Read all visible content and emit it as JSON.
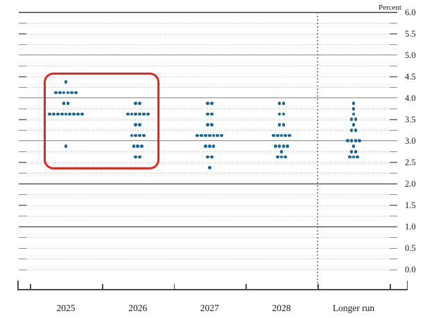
{
  "chart_data": {
    "type": "scatter",
    "subtype": "fomc-dot-plot",
    "y_axis": {
      "unit": "Percent",
      "min": 0.0,
      "max": 6.0,
      "label_interval": 0.5,
      "grid_interval": 0.25,
      "solid_line_rates": [
        6.0,
        5.0,
        4.0,
        3.0,
        2.0,
        1.0
      ],
      "tick_labels": [
        "6.0",
        "5.5",
        "5.0",
        "4.5",
        "4.0",
        "3.5",
        "3.0",
        "2.5",
        "2.0",
        "1.5",
        "1.0",
        "0.5",
        "0.0"
      ]
    },
    "categories": [
      "2025",
      "2026",
      "2027",
      "2028",
      "Longer run"
    ],
    "separator_before_category": "Longer run",
    "legend": "none",
    "grid": "on",
    "series": [
      {
        "category": "2025",
        "dots": [
          {
            "rate": 4.375,
            "count": 1
          },
          {
            "rate": 4.125,
            "count": 6
          },
          {
            "rate": 3.875,
            "count": 2
          },
          {
            "rate": 3.625,
            "count": 9
          },
          {
            "rate": 2.875,
            "count": 1
          }
        ]
      },
      {
        "category": "2026",
        "dots": [
          {
            "rate": 3.875,
            "count": 2
          },
          {
            "rate": 3.625,
            "count": 6
          },
          {
            "rate": 3.375,
            "count": 2
          },
          {
            "rate": 3.125,
            "count": 4
          },
          {
            "rate": 2.875,
            "count": 3
          },
          {
            "rate": 2.625,
            "count": 2
          }
        ]
      },
      {
        "category": "2027",
        "dots": [
          {
            "rate": 3.875,
            "count": 2
          },
          {
            "rate": 3.625,
            "count": 2
          },
          {
            "rate": 3.375,
            "count": 2
          },
          {
            "rate": 3.125,
            "count": 7
          },
          {
            "rate": 2.875,
            "count": 3
          },
          {
            "rate": 2.625,
            "count": 2
          },
          {
            "rate": 2.375,
            "count": 1
          }
        ]
      },
      {
        "category": "2028",
        "dots": [
          {
            "rate": 3.875,
            "count": 2
          },
          {
            "rate": 3.625,
            "count": 2
          },
          {
            "rate": 3.375,
            "count": 2
          },
          {
            "rate": 3.125,
            "count": 5
          },
          {
            "rate": 2.875,
            "count": 4
          },
          {
            "rate": 2.75,
            "count": 1
          },
          {
            "rate": 2.625,
            "count": 3
          }
        ]
      },
      {
        "category": "Longer run",
        "dots": [
          {
            "rate": 3.875,
            "count": 1
          },
          {
            "rate": 3.75,
            "count": 1
          },
          {
            "rate": 3.625,
            "count": 1
          },
          {
            "rate": 3.5,
            "count": 2
          },
          {
            "rate": 3.375,
            "count": 1
          },
          {
            "rate": 3.25,
            "count": 2
          },
          {
            "rate": 3.0,
            "count": 4
          },
          {
            "rate": 2.875,
            "count": 1
          },
          {
            "rate": 2.75,
            "count": 2
          },
          {
            "rate": 2.625,
            "count": 3
          }
        ]
      }
    ],
    "dot_color": "#15679b",
    "annotation": {
      "type": "highlight-box",
      "color": "#e8251d",
      "covers_categories": [
        "2025",
        "2026"
      ]
    }
  }
}
